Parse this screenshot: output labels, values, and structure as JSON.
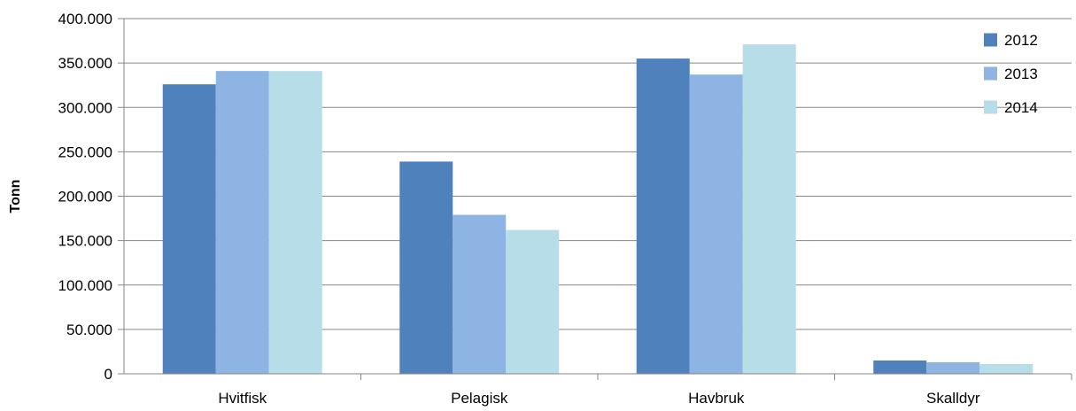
{
  "chart_data": {
    "type": "bar",
    "title": "",
    "xlabel": "",
    "ylabel": "Tonn",
    "ylim": [
      0,
      400000
    ],
    "yticks": [
      0,
      50000,
      100000,
      150000,
      200000,
      250000,
      300000,
      350000,
      400000
    ],
    "ytick_labels": [
      "0",
      "50.000",
      "100.000",
      "150.000",
      "200.000",
      "250.000",
      "300.000",
      "350.000",
      "400.000"
    ],
    "categories": [
      "Hvitfisk",
      "Pelagisk",
      "Havbruk",
      "Skalldyr"
    ],
    "series": [
      {
        "name": "2012",
        "color": "#4f81bd",
        "values": [
          326000,
          239000,
          355000,
          15000
        ]
      },
      {
        "name": "2013",
        "color": "#8eb4e3",
        "values": [
          341000,
          179000,
          337000,
          13000
        ]
      },
      {
        "name": "2014",
        "color": "#b7dde8",
        "values": [
          341000,
          162000,
          371000,
          11000
        ]
      }
    ],
    "grid": true,
    "legend_position": "top-right"
  }
}
